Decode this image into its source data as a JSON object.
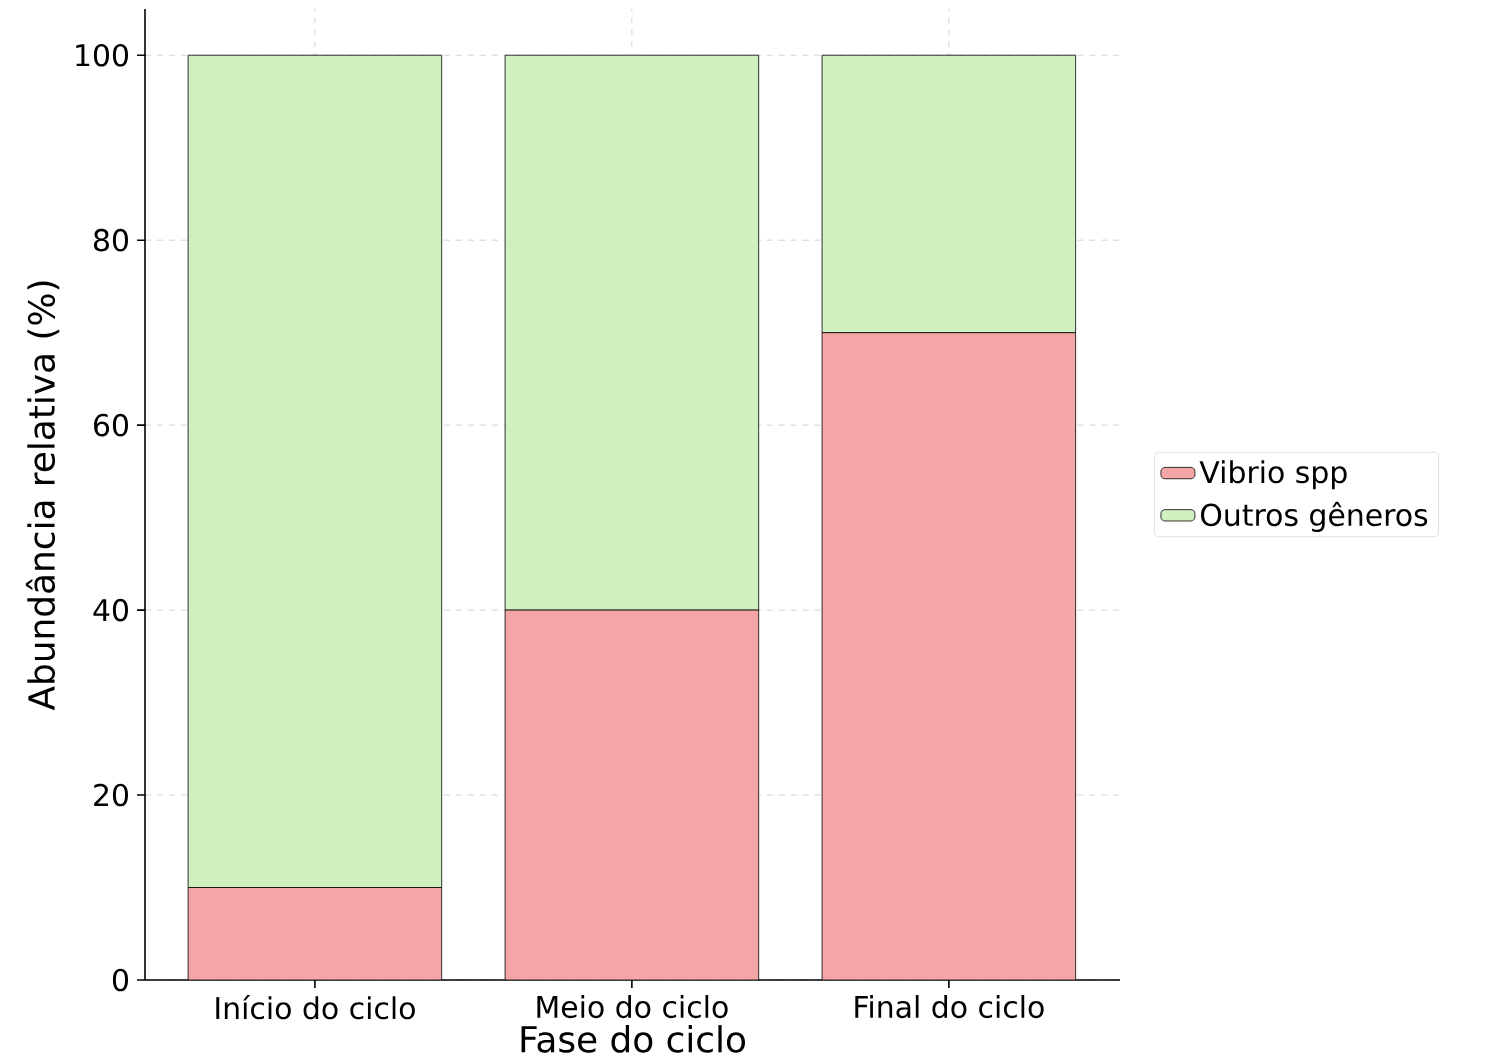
{
  "chart_data": {
    "type": "bar",
    "stacked": true,
    "xlabel": "Fase do ciclo",
    "ylabel": "Abundância relativa (%)",
    "categories": [
      "Início do ciclo",
      "Meio do ciclo",
      "Final do ciclo"
    ],
    "series": [
      {
        "name": "Vibrio spp",
        "color": "#f4a6a6",
        "values": [
          10,
          40,
          70
        ]
      },
      {
        "name": "Outros gêneros",
        "color": "#d0f0c0",
        "values": [
          90,
          60,
          30
        ]
      }
    ],
    "ylim": [
      0,
      105
    ],
    "yticks": [
      0,
      20,
      40,
      60,
      80,
      100
    ],
    "grid": true,
    "legend": "right"
  }
}
